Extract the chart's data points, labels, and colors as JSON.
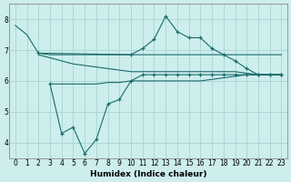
{
  "xlabel": "Humidex (Indice chaleur)",
  "ylabel": "",
  "bg_color": "#cdeeed",
  "grid_color": "#aad8d5",
  "line_color": "#1a6b6b",
  "xlim": [
    -0.5,
    23.5
  ],
  "ylim": [
    3.5,
    8.5
  ],
  "yticks": [
    4,
    5,
    6,
    7,
    8
  ],
  "xticks": [
    0,
    1,
    2,
    3,
    4,
    5,
    6,
    7,
    8,
    9,
    10,
    11,
    12,
    13,
    14,
    15,
    16,
    17,
    18,
    19,
    20,
    21,
    22,
    23
  ],
  "series": [
    {
      "x": [
        0,
        1,
        2,
        3,
        4,
        5,
        6,
        7,
        8,
        9,
        10,
        11,
        12,
        13,
        14,
        15,
        16,
        17,
        18,
        19,
        20,
        21,
        22,
        23
      ],
      "y": [
        7.8,
        7.5,
        6.9,
        6.85,
        6.85,
        6.85,
        6.85,
        6.85,
        6.85,
        6.85,
        6.85,
        6.85,
        6.85,
        6.85,
        6.85,
        6.85,
        6.85,
        6.85,
        6.85,
        6.85,
        6.85,
        6.85,
        6.85,
        6.85
      ],
      "marker": false
    },
    {
      "x": [
        2,
        10,
        11,
        12,
        13,
        14,
        15,
        16,
        17,
        18,
        19,
        20,
        21,
        22,
        23
      ],
      "y": [
        6.9,
        6.85,
        7.05,
        7.35,
        8.1,
        7.6,
        7.4,
        7.4,
        7.05,
        6.85,
        6.65,
        6.4,
        6.2,
        6.2,
        6.2
      ],
      "marker": true
    },
    {
      "x": [
        2,
        3,
        4,
        5,
        6,
        7,
        8,
        9,
        10,
        11,
        12,
        13,
        14,
        15,
        16,
        17,
        18,
        19,
        20,
        21,
        22,
        23
      ],
      "y": [
        6.85,
        6.75,
        6.65,
        6.55,
        6.5,
        6.45,
        6.4,
        6.35,
        6.3,
        6.3,
        6.3,
        6.3,
        6.3,
        6.3,
        6.3,
        6.3,
        6.3,
        6.3,
        6.25,
        6.2,
        6.2,
        6.2
      ],
      "marker": false
    },
    {
      "x": [
        3,
        4,
        5,
        6,
        7,
        8,
        9,
        10,
        11,
        12,
        13,
        14,
        15,
        16,
        17,
        18,
        19,
        20,
        21,
        22,
        23
      ],
      "y": [
        5.9,
        5.9,
        5.9,
        5.9,
        5.9,
        5.95,
        5.95,
        6.0,
        6.0,
        6.0,
        6.0,
        6.0,
        6.0,
        6.0,
        6.05,
        6.1,
        6.15,
        6.2,
        6.2,
        6.2,
        6.2
      ],
      "marker": false
    },
    {
      "x": [
        3,
        4,
        5,
        6,
        7,
        8,
        9,
        10,
        11,
        12,
        13,
        14,
        15,
        16,
        17,
        18,
        19,
        20,
        21,
        22,
        23
      ],
      "y": [
        5.9,
        4.3,
        4.5,
        3.65,
        4.1,
        5.25,
        5.4,
        6.0,
        6.2,
        6.2,
        6.2,
        6.2,
        6.2,
        6.2,
        6.2,
        6.2,
        6.2,
        6.2,
        6.2,
        6.2,
        6.2
      ],
      "marker": true
    }
  ]
}
